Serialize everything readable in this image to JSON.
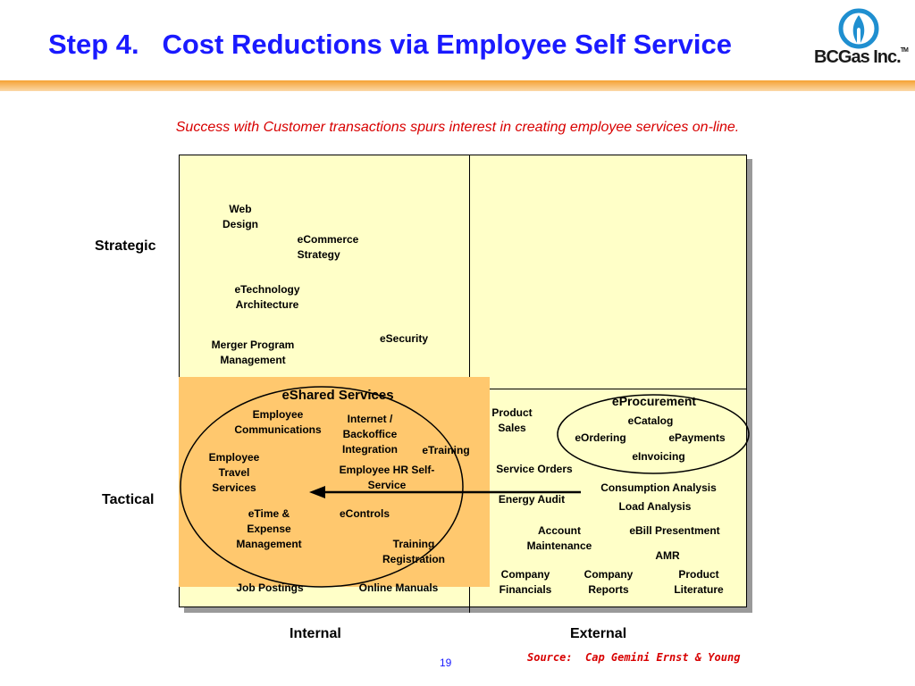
{
  "header": {
    "title": "Step 4.   Cost Reductions via Employee Self Service",
    "logo_text": "BCGas Inc.",
    "logo_tm": "TM",
    "logo_icon": "gas-flame-icon"
  },
  "subtitle": "Success with Customer transactions spurs interest in creating employee services on-line.",
  "axes": {
    "strategic": "Strategic",
    "tactical": "Tactical",
    "internal": "Internal",
    "external": "External"
  },
  "strategic_internal": {
    "web_design": [
      "Web",
      "Design"
    ],
    "ecommerce_strategy": [
      "eCommerce",
      "Strategy"
    ],
    "etechnology_architecture": [
      "eTechnology",
      "Architecture"
    ],
    "merger_program_management": [
      "Merger Program",
      "Management"
    ],
    "esecurity": "eSecurity"
  },
  "eshared": {
    "title": "eShared Services",
    "employee_communications": [
      "Employee",
      "Communications"
    ],
    "internet_backoffice": [
      "Internet /",
      "Backoffice",
      "Integration"
    ],
    "etraining": "eTraining",
    "employee_travel": [
      "Employee",
      "Travel",
      "Services"
    ],
    "employee_hr": [
      "Employee HR Self-",
      "Service"
    ],
    "etime_expense": [
      "eTime &",
      "Expense",
      "Management"
    ],
    "econtrols": "eControls",
    "training_registration": [
      "Training",
      "Registration"
    ]
  },
  "tactical_internal": {
    "job_postings": "Job Postings",
    "online_manuals": "Online Manuals"
  },
  "eprocurement": {
    "title": "eProcurement",
    "ecatalog": "eCatalog",
    "eordering": "eOrdering",
    "epayments": "ePayments",
    "einvoicing": "eInvoicing"
  },
  "tactical_external": {
    "product_sales": [
      "Product",
      "Sales"
    ],
    "service_orders": "Service Orders",
    "energy_audit": "Energy Audit",
    "consumption_analysis": "Consumption Analysis",
    "load_analysis": "Load Analysis",
    "account_maintenance": [
      "Account",
      "Maintenance"
    ],
    "ebill_presentment": "eBill Presentment",
    "amr": "AMR",
    "company_financials": [
      "Company",
      "Financials"
    ],
    "company_reports": [
      "Company",
      "Reports"
    ],
    "product_literature": [
      "Product",
      "Literature"
    ]
  },
  "footer": {
    "page_number": "19",
    "source": "Source:  Cap Gemini Ernst & Young"
  },
  "colors": {
    "title": "#1a1aff",
    "subtitle": "#d80000",
    "quadrant_fill": "#ffffc8",
    "eshared_fill": "#ffc86e",
    "accent_bar": "#f6a234",
    "logo_blue": "#1f8fd0"
  }
}
